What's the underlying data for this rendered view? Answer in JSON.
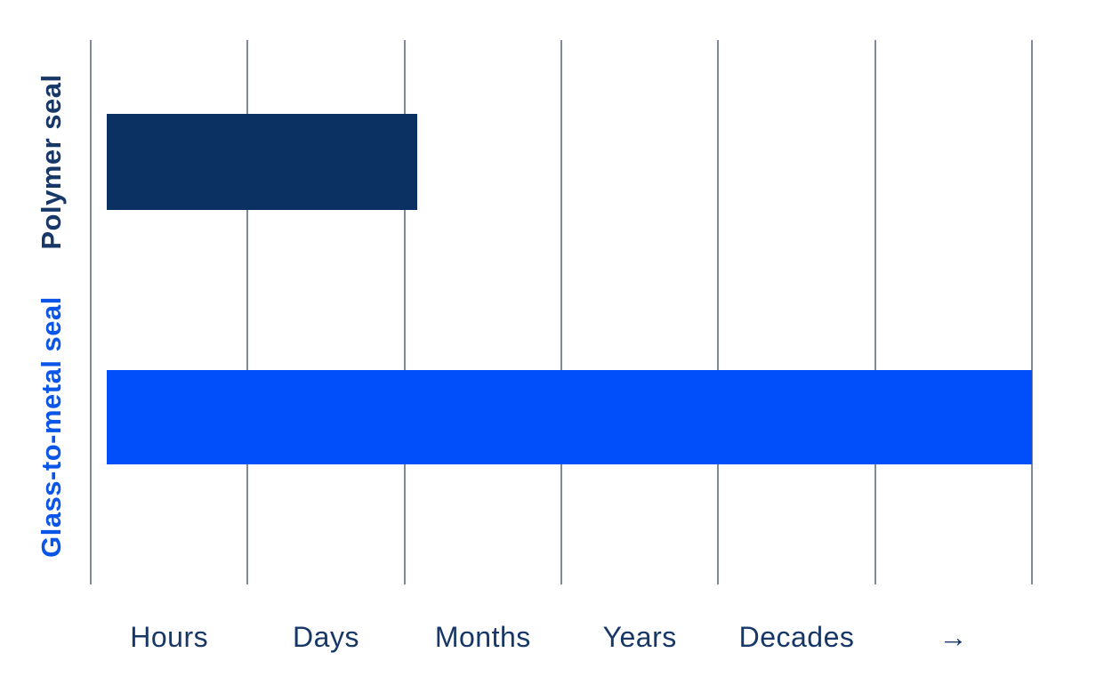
{
  "chart_data": {
    "type": "bar",
    "orientation": "horizontal",
    "title": "",
    "categories": [
      "Polymer seal",
      "Glass-to-metal seal"
    ],
    "values": [
      2.08,
      6.0
    ],
    "value_note": "values are in qualitative axis segments; axis runs Hours to Decades and beyond (arrow)",
    "x_tick_labels": [
      "Hours",
      "Days",
      "Months",
      "Years",
      "Decades",
      "→"
    ],
    "xlim": [
      0,
      6
    ],
    "gridline_count": 7,
    "grid": "vertical-only",
    "legend": "none",
    "bar_colors": [
      "#0a3161",
      "#004ffb"
    ],
    "category_label_colors": [
      "#163767",
      "#0b55e8"
    ],
    "axis_label_color": "#163767",
    "gridline_color": "#7d8b9c",
    "background_color": "#ffffff"
  }
}
